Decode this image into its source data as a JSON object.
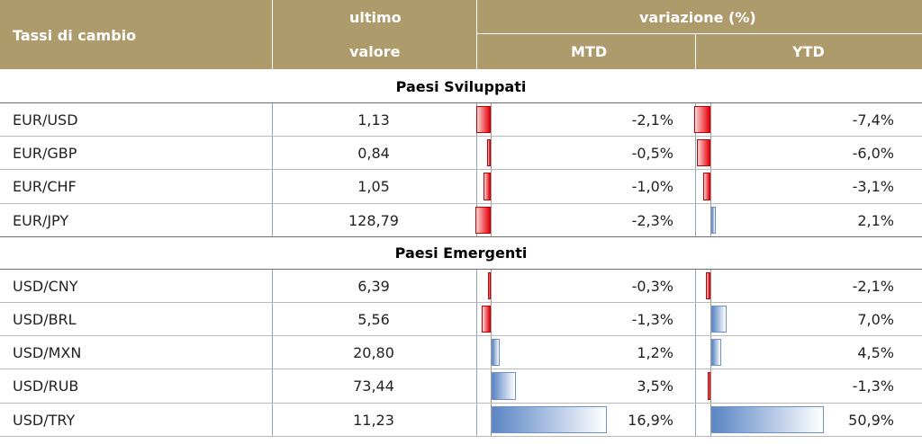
{
  "header": {
    "col1": "Tassi di cambio",
    "col2_line1": "ultimo",
    "col2_line2": "valore",
    "variation": "variazione (%)",
    "mtd": "MTD",
    "ytd": "YTD"
  },
  "sections": [
    {
      "title": "Paesi Sviluppati",
      "rows": [
        {
          "pair": "EUR/USD",
          "value": "1,13",
          "mtd": "-2,1%",
          "ytd": "-7,4%",
          "mtd_num": -2.1,
          "ytd_num": -7.4
        },
        {
          "pair": "EUR/GBP",
          "value": "0,84",
          "mtd": "-0,5%",
          "ytd": "-6,0%",
          "mtd_num": -0.5,
          "ytd_num": -6.0
        },
        {
          "pair": "EUR/CHF",
          "value": "1,05",
          "mtd": "-1,0%",
          "ytd": "-3,1%",
          "mtd_num": -1.0,
          "ytd_num": -3.1
        },
        {
          "pair": "EUR/JPY",
          "value": "128,79",
          "mtd": "-2,3%",
          "ytd": "2,1%",
          "mtd_num": -2.3,
          "ytd_num": 2.1
        }
      ]
    },
    {
      "title": "Paesi Emergenti",
      "rows": [
        {
          "pair": "USD/CNY",
          "value": "6,39",
          "mtd": "-0,3%",
          "ytd": "-2,1%",
          "mtd_num": -0.3,
          "ytd_num": -2.1
        },
        {
          "pair": "USD/BRL",
          "value": "5,56",
          "mtd": "-1,3%",
          "ytd": "7,0%",
          "mtd_num": -1.3,
          "ytd_num": 7.0
        },
        {
          "pair": "USD/MXN",
          "value": "20,80",
          "mtd": "1,2%",
          "ytd": "4,5%",
          "mtd_num": 1.2,
          "ytd_num": 4.5
        },
        {
          "pair": "USD/RUB",
          "value": "73,44",
          "mtd": "3,5%",
          "ytd": "-1,3%",
          "mtd_num": 3.5,
          "ytd_num": -1.3
        },
        {
          "pair": "USD/TRY",
          "value": "11,23",
          "mtd": "16,9%",
          "ytd": "50,9%",
          "mtd_num": 16.9,
          "ytd_num": 50.9
        }
      ]
    }
  ],
  "colors": {
    "header_bg": "#ae9b6b",
    "negative_bar": "#e8000a",
    "positive_bar": "#5a85c4"
  }
}
